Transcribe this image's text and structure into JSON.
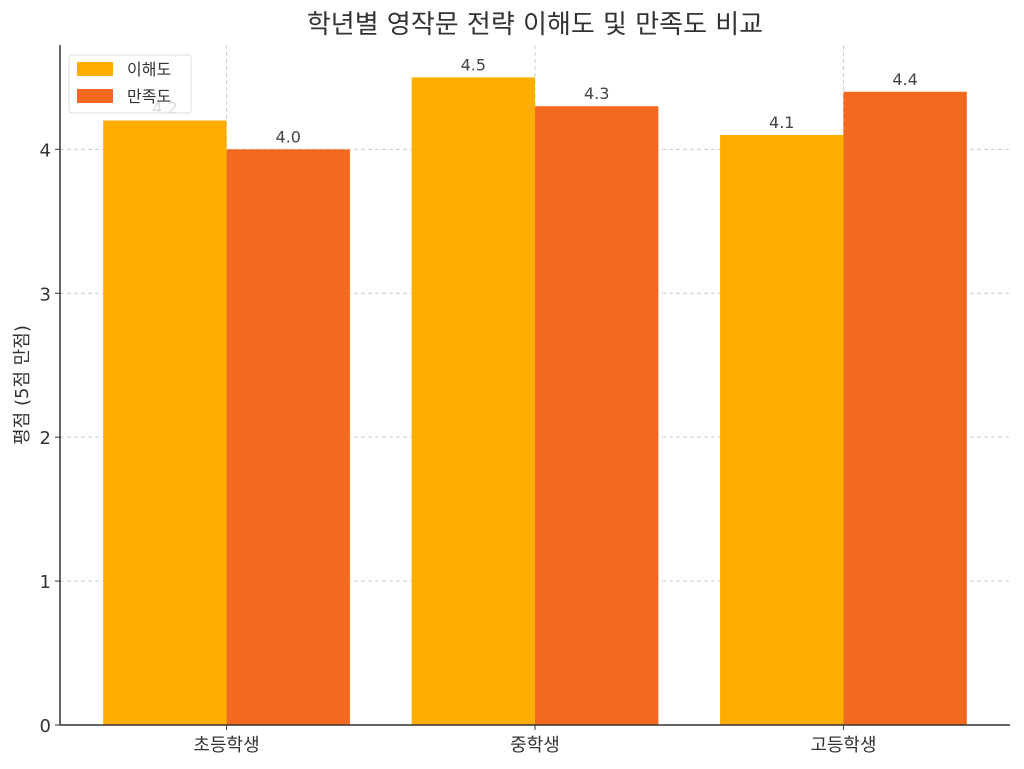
{
  "chart_data": {
    "type": "bar",
    "title": "학년별 영작문 전략 이해도 및 만족도 비교",
    "xlabel": "",
    "ylabel": "평점 (5점 만점)",
    "categories": [
      "초등학생",
      "중학생",
      "고등학생"
    ],
    "series": [
      {
        "name": "이해도",
        "values": [
          4.2,
          4.5,
          4.1
        ],
        "color": "#FFAE00",
        "labels": [
          "4.2",
          "4.5",
          "4.1"
        ]
      },
      {
        "name": "만족도",
        "values": [
          4.0,
          4.3,
          4.4
        ],
        "color": "#F26A22",
        "labels": [
          "4.0",
          "4.3",
          "4.4"
        ]
      }
    ],
    "ylim": [
      0,
      4.725
    ],
    "yticks": [
      0,
      1,
      2,
      3,
      4
    ],
    "ytick_labels": [
      "0",
      "1",
      "2",
      "3",
      "4"
    ],
    "grid": true,
    "legend_position": "top-left"
  }
}
